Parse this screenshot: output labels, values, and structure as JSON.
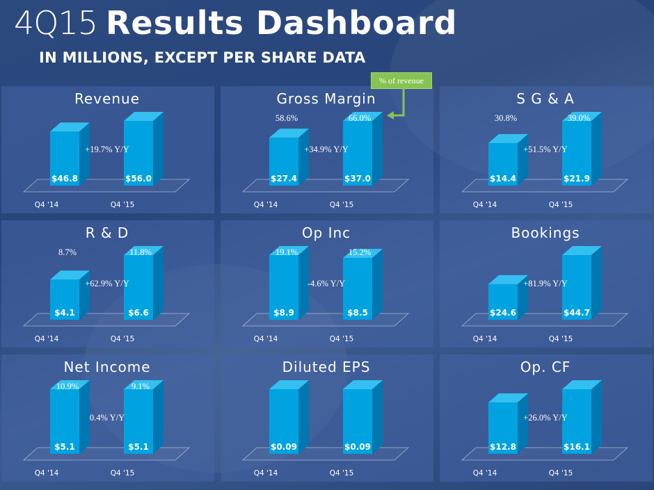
{
  "header": {
    "title_thin": "4Q15",
    "title_bold": "Results Dashboard",
    "subtitle": "IN MILLIONS, EXCEPT PER SHARE DATA"
  },
  "callout": {
    "label": "% of revenue"
  },
  "colors": {
    "bar_front": "#00a3e0",
    "bar_side": "#0077b0",
    "bar_top": "#33c0f0",
    "callout": "#86c351"
  },
  "chart_data": [
    {
      "type": "bar",
      "title": "Revenue",
      "categories": [
        "Q4 '14",
        "Q4 '15"
      ],
      "values": [
        46.8,
        56.0
      ],
      "value_labels": [
        "$46.8",
        "$56.0"
      ],
      "pct_labels": [
        "",
        ""
      ],
      "yoy": "+19.7% Y/Y"
    },
    {
      "type": "bar",
      "title": "Gross Margin",
      "categories": [
        "Q4 '14",
        "Q4 '15"
      ],
      "values": [
        27.4,
        37.0
      ],
      "value_labels": [
        "$27.4",
        "$37.0"
      ],
      "pct_labels": [
        "58.6%",
        "66.0%"
      ],
      "yoy": "+34.9% Y/Y"
    },
    {
      "type": "bar",
      "title": "S G & A",
      "categories": [
        "Q4 '14",
        "Q4 '15"
      ],
      "values": [
        14.4,
        21.9
      ],
      "value_labels": [
        "$14.4",
        "$21.9"
      ],
      "pct_labels": [
        "30.8%",
        "39.0%"
      ],
      "yoy": "+51.5% Y/Y"
    },
    {
      "type": "bar",
      "title": "R & D",
      "categories": [
        "Q4 '14",
        "Q4 '15"
      ],
      "values": [
        4.1,
        6.6
      ],
      "value_labels": [
        "$4.1",
        "$6.6"
      ],
      "pct_labels": [
        "8.7%",
        "11.8%"
      ],
      "yoy": "+62.9% Y/Y"
    },
    {
      "type": "bar",
      "title": "Op Inc",
      "categories": [
        "Q4 '14",
        "Q4 '15"
      ],
      "values": [
        8.9,
        8.5
      ],
      "value_labels": [
        "$8.9",
        "$8.5"
      ],
      "pct_labels": [
        "19.1%",
        "15.2%"
      ],
      "yoy": "-4.6% Y/Y"
    },
    {
      "type": "bar",
      "title": "Bookings",
      "categories": [
        "Q4 '14",
        "Q4 '15"
      ],
      "values": [
        24.6,
        44.7
      ],
      "value_labels": [
        "$24.6",
        "$44.7"
      ],
      "pct_labels": [
        "",
        ""
      ],
      "yoy": "+81.9% Y/Y"
    },
    {
      "type": "bar",
      "title": "Net Income",
      "categories": [
        "Q4 '14",
        "Q4 '15"
      ],
      "values": [
        5.1,
        5.1
      ],
      "value_labels": [
        "$5.1",
        "$5.1"
      ],
      "pct_labels": [
        "10.9%",
        "9.1%"
      ],
      "yoy": "0.4% Y/Y"
    },
    {
      "type": "bar",
      "title": "Diluted EPS",
      "categories": [
        "Q4 '14",
        "Q4 '15"
      ],
      "values": [
        0.09,
        0.09
      ],
      "value_labels": [
        "$0.09",
        "$0.09"
      ],
      "pct_labels": [
        "",
        ""
      ],
      "yoy": ""
    },
    {
      "type": "bar",
      "title": "Op. CF",
      "categories": [
        "Q4 '14",
        "Q4 '15"
      ],
      "values": [
        12.8,
        16.1
      ],
      "value_labels": [
        "$12.8",
        "$16.1"
      ],
      "pct_labels": [
        "",
        ""
      ],
      "yoy": "+26.0% Y/Y"
    }
  ]
}
